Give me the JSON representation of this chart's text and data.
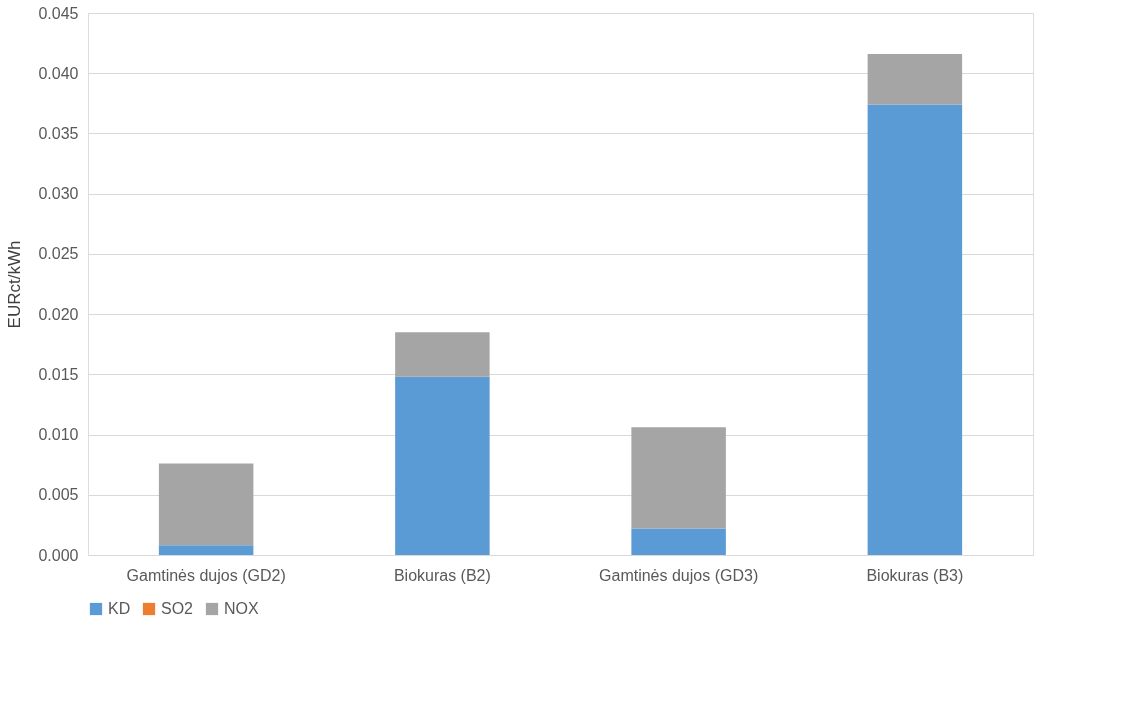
{
  "chart_data": {
    "type": "bar",
    "stacked": true,
    "ylabel": "EURct/kWh",
    "categories": [
      "Gamtinės dujos (GD2)",
      "Biokuras (B2)",
      "Gamtinės dujos (GD3)",
      "Biokuras (B3)"
    ],
    "series": [
      {
        "name": "KD",
        "color": "#5b9bd5",
        "values": [
          0.0008,
          0.0148,
          0.0022,
          0.0374
        ]
      },
      {
        "name": "SO2",
        "color": "#ed7d31",
        "values": [
          0,
          0,
          0,
          0
        ]
      },
      {
        "name": "NOX",
        "color": "#a5a5a5",
        "values": [
          0.0068,
          0.0037,
          0.0084,
          0.0042
        ]
      }
    ],
    "ylim": [
      0,
      0.045
    ],
    "yticks": [
      {
        "value": 0,
        "label": "0.000"
      },
      0.005,
      {
        "value": 0.01,
        "label": "0.010"
      },
      0.015,
      {
        "value": 0.02,
        "label": "0.020"
      },
      0.025,
      {
        "value": 0.03,
        "label": "0.030"
      },
      0.035,
      {
        "value": 0.04,
        "label": "0.040"
      },
      0.045
    ],
    "grid": "y",
    "legend": "bottom"
  }
}
